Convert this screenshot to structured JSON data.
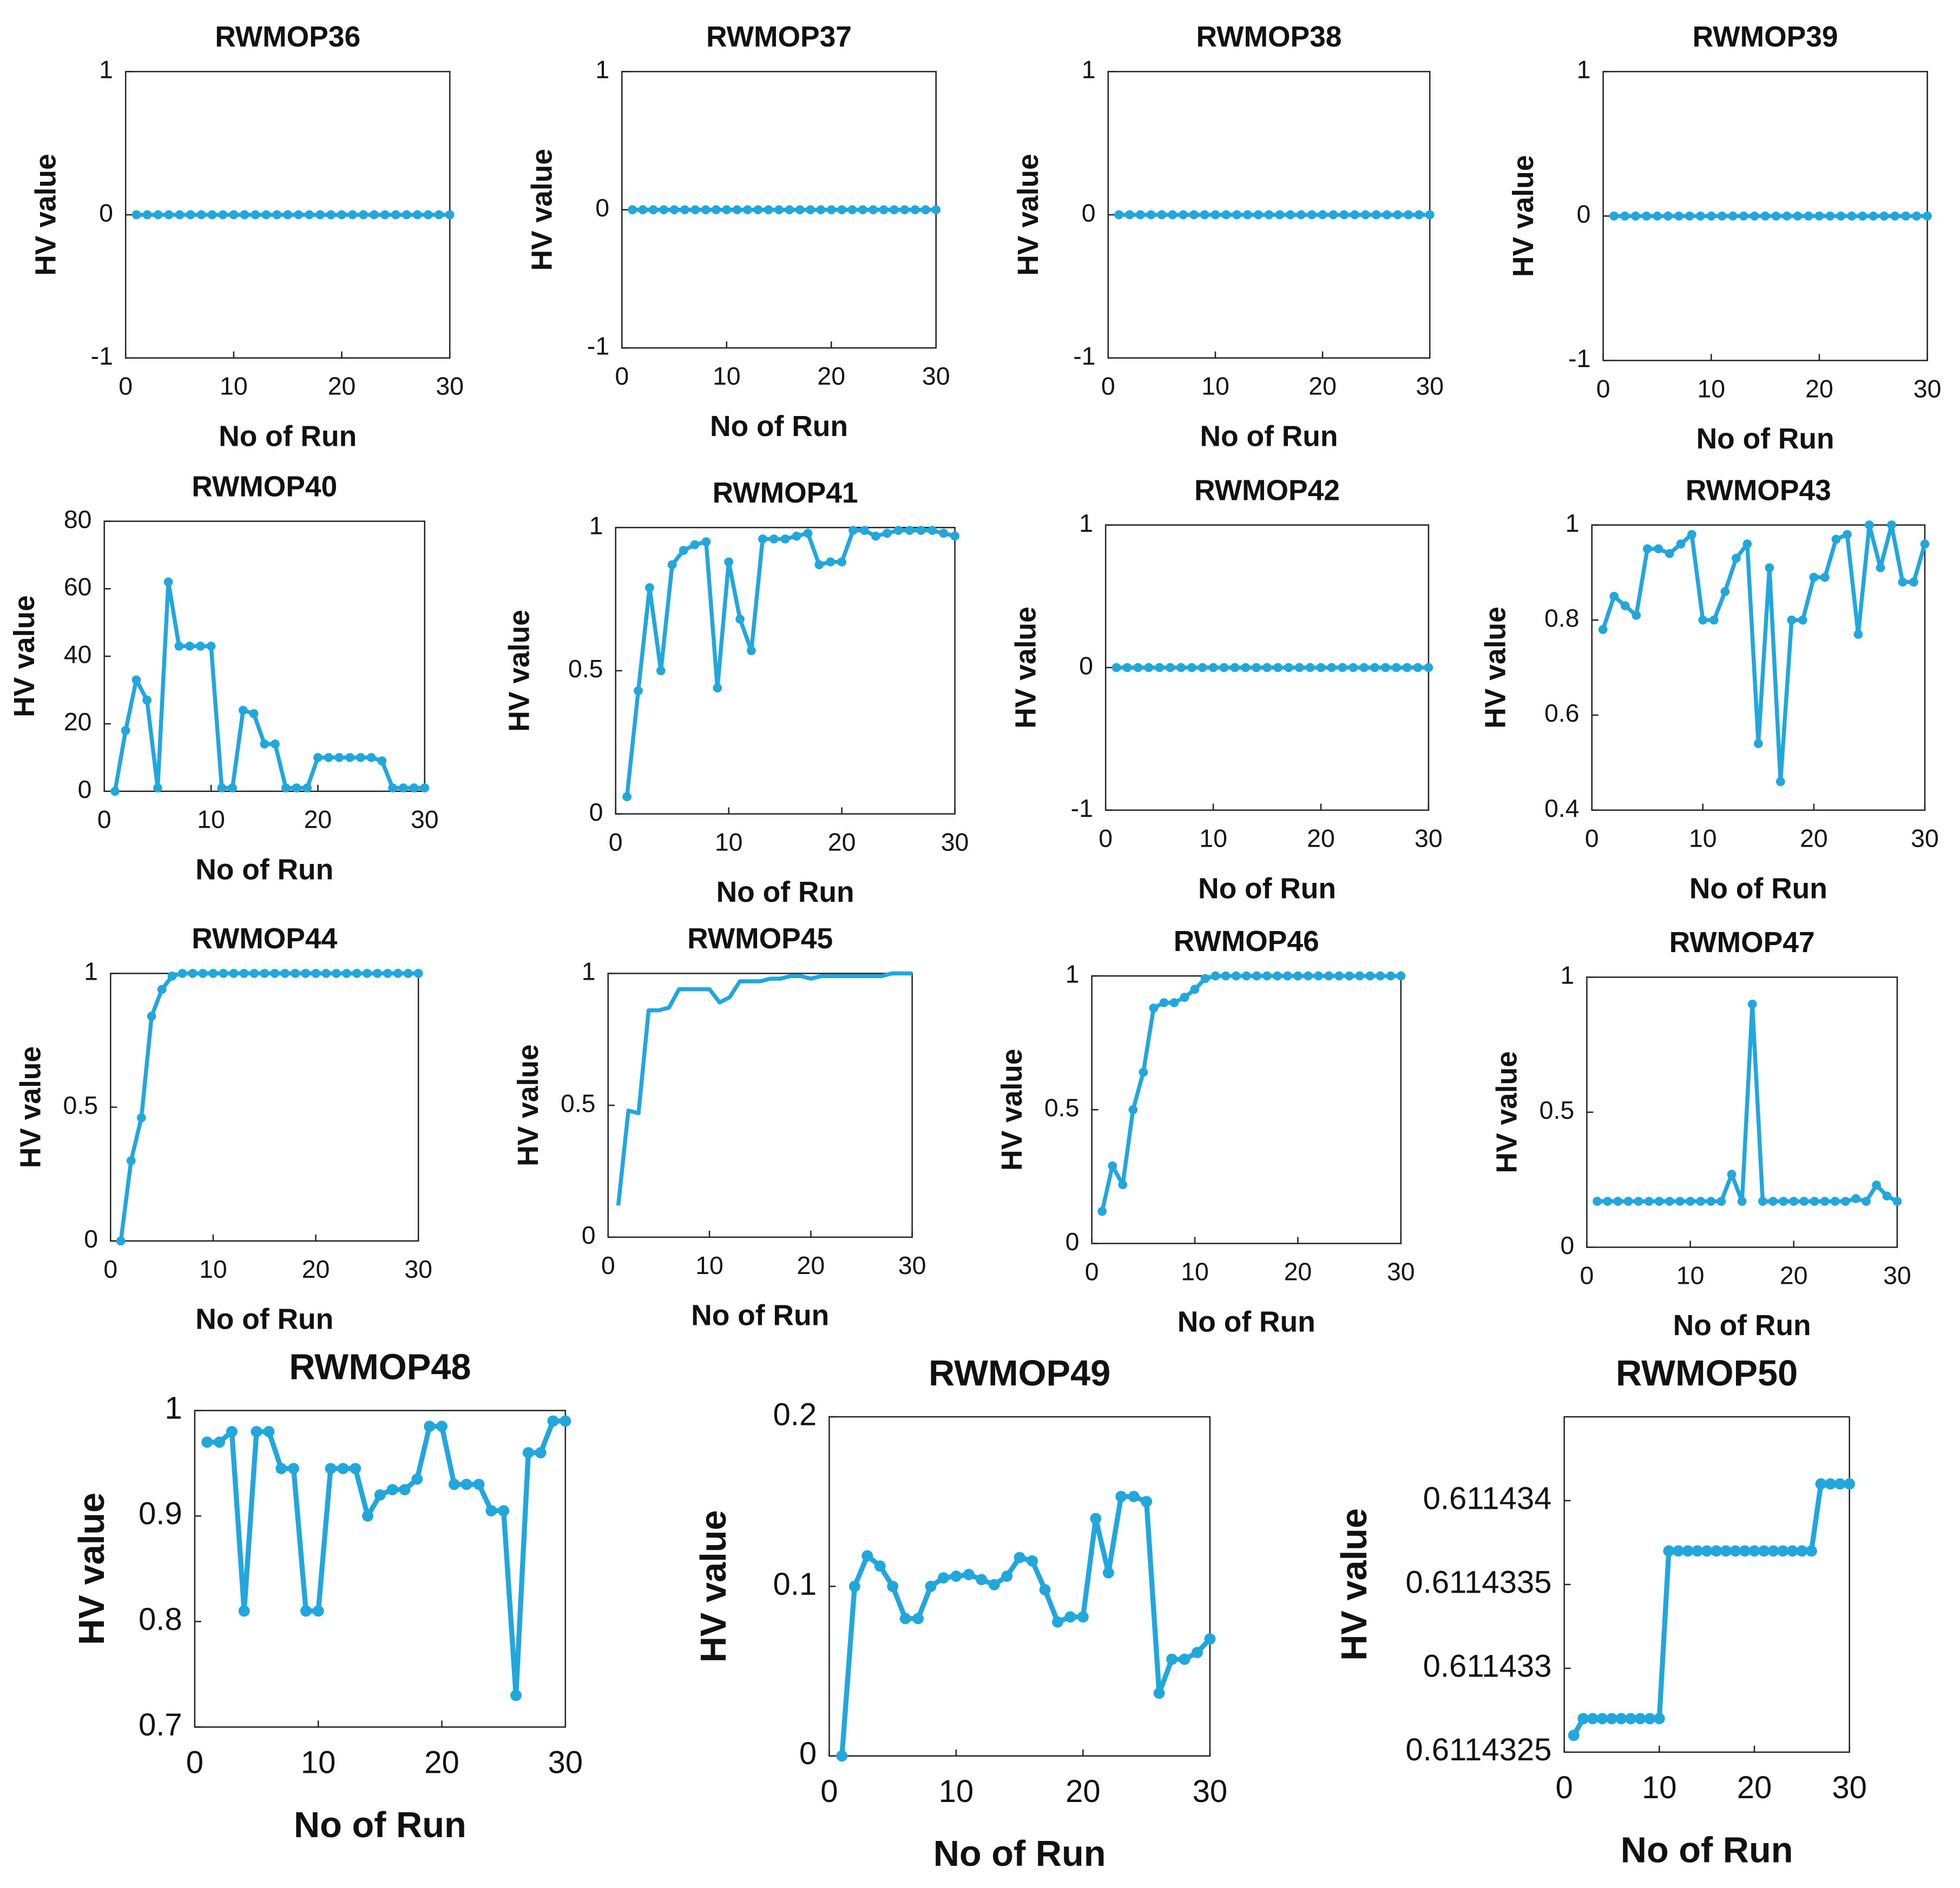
{
  "chart_data": [
    {
      "type": "line",
      "title": "RWMOP36",
      "xlabel": "No of Run",
      "ylabel": "HV value",
      "color": "#22a7dc",
      "markers": true,
      "x": [
        1,
        2,
        3,
        4,
        5,
        6,
        7,
        8,
        9,
        10,
        11,
        12,
        13,
        14,
        15,
        16,
        17,
        18,
        19,
        20,
        21,
        22,
        23,
        24,
        25,
        26,
        27,
        28,
        29,
        30
      ],
      "values": [
        0,
        0,
        0,
        0,
        0,
        0,
        0,
        0,
        0,
        0,
        0,
        0,
        0,
        0,
        0,
        0,
        0,
        0,
        0,
        0,
        0,
        0,
        0,
        0,
        0,
        0,
        0,
        0,
        0,
        0
      ],
      "xlim": [
        0,
        30
      ],
      "xticks": [
        0,
        10,
        20,
        30
      ],
      "ylim": [
        -1,
        1
      ],
      "yticks": [
        -1,
        0,
        1
      ]
    },
    {
      "type": "line",
      "title": "RWMOP37",
      "xlabel": "No of Run",
      "ylabel": "HV value",
      "color": "#22a7dc",
      "markers": true,
      "x": [
        1,
        2,
        3,
        4,
        5,
        6,
        7,
        8,
        9,
        10,
        11,
        12,
        13,
        14,
        15,
        16,
        17,
        18,
        19,
        20,
        21,
        22,
        23,
        24,
        25,
        26,
        27,
        28,
        29,
        30
      ],
      "values": [
        0,
        0,
        0,
        0,
        0,
        0,
        0,
        0,
        0,
        0,
        0,
        0,
        0,
        0,
        0,
        0,
        0,
        0,
        0,
        0,
        0,
        0,
        0,
        0,
        0,
        0,
        0,
        0,
        0,
        0
      ],
      "xlim": [
        0,
        30
      ],
      "xticks": [
        0,
        10,
        20,
        30
      ],
      "ylim": [
        -1,
        1
      ],
      "yticks": [
        -1,
        0,
        1
      ]
    },
    {
      "type": "line",
      "title": "RWMOP38",
      "xlabel": "No of Run",
      "ylabel": "HV value",
      "color": "#22a7dc",
      "markers": true,
      "x": [
        1,
        2,
        3,
        4,
        5,
        6,
        7,
        8,
        9,
        10,
        11,
        12,
        13,
        14,
        15,
        16,
        17,
        18,
        19,
        20,
        21,
        22,
        23,
        24,
        25,
        26,
        27,
        28,
        29,
        30
      ],
      "values": [
        0,
        0,
        0,
        0,
        0,
        0,
        0,
        0,
        0,
        0,
        0,
        0,
        0,
        0,
        0,
        0,
        0,
        0,
        0,
        0,
        0,
        0,
        0,
        0,
        0,
        0,
        0,
        0,
        0,
        0
      ],
      "xlim": [
        0,
        30
      ],
      "xticks": [
        0,
        10,
        20,
        30
      ],
      "ylim": [
        -1,
        1
      ],
      "yticks": [
        -1,
        0,
        1
      ]
    },
    {
      "type": "line",
      "title": "RWMOP39",
      "xlabel": "No of Run",
      "ylabel": "HV value",
      "color": "#22a7dc",
      "markers": true,
      "x": [
        1,
        2,
        3,
        4,
        5,
        6,
        7,
        8,
        9,
        10,
        11,
        12,
        13,
        14,
        15,
        16,
        17,
        18,
        19,
        20,
        21,
        22,
        23,
        24,
        25,
        26,
        27,
        28,
        29,
        30
      ],
      "values": [
        0,
        0,
        0,
        0,
        0,
        0,
        0,
        0,
        0,
        0,
        0,
        0,
        0,
        0,
        0,
        0,
        0,
        0,
        0,
        0,
        0,
        0,
        0,
        0,
        0,
        0,
        0,
        0,
        0,
        0
      ],
      "xlim": [
        0,
        30
      ],
      "xticks": [
        0,
        10,
        20,
        30
      ],
      "ylim": [
        -1,
        1
      ],
      "yticks": [
        -1,
        0,
        1
      ]
    },
    {
      "type": "line",
      "title": "RWMOP40",
      "xlabel": "No of Run",
      "ylabel": "HV value",
      "color": "#22a7dc",
      "markers": true,
      "x": [
        1,
        2,
        3,
        4,
        5,
        6,
        7,
        8,
        9,
        10,
        11,
        12,
        13,
        14,
        15,
        16,
        17,
        18,
        19,
        20,
        21,
        22,
        23,
        24,
        25,
        26,
        27,
        28,
        29,
        30
      ],
      "values": [
        0,
        18,
        33,
        27,
        1,
        62,
        43,
        43,
        43,
        43,
        1,
        1,
        24,
        23,
        14,
        14,
        1,
        1,
        1,
        10,
        10,
        10,
        10,
        10,
        10,
        9,
        1,
        1,
        1,
        1
      ],
      "xlim": [
        0,
        30
      ],
      "xticks": [
        0,
        10,
        20,
        30
      ],
      "ylim": [
        0,
        80
      ],
      "yticks": [
        0,
        20,
        40,
        60,
        80
      ]
    },
    {
      "type": "line",
      "title": "RWMOP41",
      "xlabel": "No of Run",
      "ylabel": "HV value",
      "color": "#22a7dc",
      "markers": true,
      "x": [
        1,
        2,
        3,
        4,
        5,
        6,
        7,
        8,
        9,
        10,
        11,
        12,
        13,
        14,
        15,
        16,
        17,
        18,
        19,
        20,
        21,
        22,
        23,
        24,
        25,
        26,
        27,
        28,
        29,
        30
      ],
      "values": [
        0.06,
        0.43,
        0.79,
        0.5,
        0.87,
        0.92,
        0.94,
        0.95,
        0.44,
        0.88,
        0.68,
        0.57,
        0.96,
        0.96,
        0.96,
        0.97,
        0.98,
        0.87,
        0.88,
        0.88,
        0.99,
        0.99,
        0.97,
        0.98,
        0.99,
        0.99,
        0.99,
        0.99,
        0.98,
        0.97
      ],
      "xlim": [
        0,
        30
      ],
      "xticks": [
        0,
        10,
        20,
        30
      ],
      "ylim": [
        0,
        1
      ],
      "yticks": [
        0,
        0.5,
        1
      ]
    },
    {
      "type": "line",
      "title": "RWMOP42",
      "xlabel": "No of Run",
      "ylabel": "HV value",
      "color": "#22a7dc",
      "markers": true,
      "x": [
        1,
        2,
        3,
        4,
        5,
        6,
        7,
        8,
        9,
        10,
        11,
        12,
        13,
        14,
        15,
        16,
        17,
        18,
        19,
        20,
        21,
        22,
        23,
        24,
        25,
        26,
        27,
        28,
        29,
        30
      ],
      "values": [
        0,
        0,
        0,
        0,
        0,
        0,
        0,
        0,
        0,
        0,
        0,
        0,
        0,
        0,
        0,
        0,
        0,
        0,
        0,
        0,
        0,
        0,
        0,
        0,
        0,
        0,
        0,
        0,
        0,
        0
      ],
      "xlim": [
        0,
        30
      ],
      "xticks": [
        0,
        10,
        20,
        30
      ],
      "ylim": [
        -1,
        1
      ],
      "yticks": [
        -1,
        0,
        1
      ]
    },
    {
      "type": "line",
      "title": "RWMOP43",
      "xlabel": "No of Run",
      "ylabel": "HV value",
      "color": "#22a7dc",
      "markers": true,
      "x": [
        1,
        2,
        3,
        4,
        5,
        6,
        7,
        8,
        9,
        10,
        11,
        12,
        13,
        14,
        15,
        16,
        17,
        18,
        19,
        20,
        21,
        22,
        23,
        24,
        25,
        26,
        27,
        28,
        29,
        30
      ],
      "values": [
        0.78,
        0.85,
        0.83,
        0.81,
        0.95,
        0.95,
        0.94,
        0.96,
        0.98,
        0.8,
        0.8,
        0.86,
        0.93,
        0.96,
        0.54,
        0.91,
        0.46,
        0.8,
        0.8,
        0.89,
        0.89,
        0.97,
        0.98,
        0.77,
        1,
        0.91,
        1,
        0.88,
        0.88,
        0.96
      ],
      "xlim": [
        0,
        30
      ],
      "xticks": [
        0,
        10,
        20,
        30
      ],
      "ylim": [
        0.4,
        1
      ],
      "yticks": [
        0.4,
        0.6,
        0.8,
        1
      ]
    },
    {
      "type": "line",
      "title": "RWMOP44",
      "xlabel": "No of Run",
      "ylabel": "HV value",
      "color": "#22a7dc",
      "markers": true,
      "x": [
        1,
        2,
        3,
        4,
        5,
        6,
        7,
        8,
        9,
        10,
        11,
        12,
        13,
        14,
        15,
        16,
        17,
        18,
        19,
        20,
        21,
        22,
        23,
        24,
        25,
        26,
        27,
        28,
        29,
        30
      ],
      "values": [
        0,
        0.3,
        0.46,
        0.84,
        0.94,
        0.99,
        1,
        1,
        1,
        1,
        1,
        1,
        1,
        1,
        1,
        1,
        1,
        1,
        1,
        1,
        1,
        1,
        1,
        1,
        1,
        1,
        1,
        1,
        1,
        1
      ],
      "xlim": [
        0,
        30
      ],
      "xticks": [
        0,
        10,
        20,
        30
      ],
      "ylim": [
        0,
        1
      ],
      "yticks": [
        0,
        0.5,
        1
      ]
    },
    {
      "type": "line",
      "title": "RWMOP45",
      "xlabel": "No of Run",
      "ylabel": "HV value",
      "color": "#22a7dc",
      "markers": false,
      "x": [
        1,
        2,
        3,
        4,
        5,
        6,
        7,
        8,
        9,
        10,
        11,
        12,
        13,
        14,
        15,
        16,
        17,
        18,
        19,
        20,
        21,
        22,
        23,
        24,
        25,
        26,
        27,
        28,
        29,
        30
      ],
      "values": [
        0.12,
        0.48,
        0.47,
        0.86,
        0.86,
        0.87,
        0.94,
        0.94,
        0.94,
        0.94,
        0.89,
        0.91,
        0.97,
        0.97,
        0.97,
        0.98,
        0.98,
        0.99,
        0.99,
        0.98,
        0.99,
        0.99,
        0.99,
        0.99,
        0.99,
        0.99,
        0.99,
        1,
        1,
        1
      ],
      "xlim": [
        0,
        30
      ],
      "xticks": [
        0,
        10,
        20,
        30
      ],
      "ylim": [
        0,
        1
      ],
      "yticks": [
        0,
        0.5,
        1
      ]
    },
    {
      "type": "line",
      "title": "RWMOP46",
      "xlabel": "No of Run",
      "ylabel": "HV value",
      "color": "#22a7dc",
      "markers": true,
      "x": [
        1,
        2,
        3,
        4,
        5,
        6,
        7,
        8,
        9,
        10,
        11,
        12,
        13,
        14,
        15,
        16,
        17,
        18,
        19,
        20,
        21,
        22,
        23,
        24,
        25,
        26,
        27,
        28,
        29,
        30
      ],
      "values": [
        0.12,
        0.29,
        0.22,
        0.5,
        0.64,
        0.88,
        0.9,
        0.9,
        0.92,
        0.95,
        0.99,
        1,
        1,
        1,
        1,
        1,
        1,
        1,
        1,
        1,
        1,
        1,
        1,
        1,
        1,
        1,
        1,
        1,
        1,
        1
      ],
      "xlim": [
        0,
        30
      ],
      "xticks": [
        0,
        10,
        20,
        30
      ],
      "ylim": [
        0,
        1
      ],
      "yticks": [
        0,
        0.5,
        1
      ]
    },
    {
      "type": "line",
      "title": "RWMOP47",
      "xlabel": "No of Run",
      "ylabel": "HV value",
      "color": "#22a7dc",
      "markers": true,
      "x": [
        1,
        2,
        3,
        4,
        5,
        6,
        7,
        8,
        9,
        10,
        11,
        12,
        13,
        14,
        15,
        16,
        17,
        18,
        19,
        20,
        21,
        22,
        23,
        24,
        25,
        26,
        27,
        28,
        29,
        30
      ],
      "values": [
        0.17,
        0.17,
        0.17,
        0.17,
        0.17,
        0.17,
        0.17,
        0.17,
        0.17,
        0.17,
        0.17,
        0.17,
        0.17,
        0.27,
        0.17,
        0.9,
        0.17,
        0.17,
        0.17,
        0.17,
        0.17,
        0.17,
        0.17,
        0.17,
        0.17,
        0.18,
        0.17,
        0.23,
        0.19,
        0.17
      ],
      "xlim": [
        0,
        30
      ],
      "xticks": [
        0,
        10,
        20,
        30
      ],
      "ylim": [
        0,
        1
      ],
      "yticks": [
        0,
        0.5,
        1
      ]
    },
    {
      "type": "line",
      "title": "RWMOP48",
      "xlabel": "No of Run",
      "ylabel": "HV value",
      "color": "#22a7dc",
      "markers": true,
      "x": [
        1,
        2,
        3,
        4,
        5,
        6,
        7,
        8,
        9,
        10,
        11,
        12,
        13,
        14,
        15,
        16,
        17,
        18,
        19,
        20,
        21,
        22,
        23,
        24,
        25,
        26,
        27,
        28,
        29,
        30
      ],
      "values": [
        0.97,
        0.97,
        0.98,
        0.81,
        0.98,
        0.98,
        0.945,
        0.945,
        0.81,
        0.81,
        0.945,
        0.945,
        0.945,
        0.9,
        0.92,
        0.925,
        0.925,
        0.935,
        0.985,
        0.985,
        0.93,
        0.93,
        0.93,
        0.905,
        0.905,
        0.73,
        0.96,
        0.96,
        0.99,
        0.99
      ],
      "xlim": [
        0,
        30
      ],
      "xticks": [
        0,
        10,
        20,
        30
      ],
      "ylim": [
        0.7,
        1
      ],
      "yticks": [
        0.7,
        0.8,
        0.9,
        1
      ]
    },
    {
      "type": "line",
      "title": "RWMOP49",
      "xlabel": "No of Run",
      "ylabel": "HV value",
      "color": "#22a7dc",
      "markers": true,
      "x": [
        1,
        2,
        3,
        4,
        5,
        6,
        7,
        8,
        9,
        10,
        11,
        12,
        13,
        14,
        15,
        16,
        17,
        18,
        19,
        20,
        21,
        22,
        23,
        24,
        25,
        26,
        27,
        28,
        29,
        30
      ],
      "values": [
        0,
        0.1,
        0.118,
        0.112,
        0.1,
        0.081,
        0.081,
        0.1,
        0.105,
        0.106,
        0.107,
        0.104,
        0.101,
        0.106,
        0.117,
        0.115,
        0.098,
        0.079,
        0.082,
        0.082,
        0.14,
        0.108,
        0.153,
        0.153,
        0.15,
        0.037,
        0.057,
        0.057,
        0.061,
        0.069
      ],
      "xlim": [
        0,
        30
      ],
      "xticks": [
        0,
        10,
        20,
        30
      ],
      "ylim": [
        0,
        0.2
      ],
      "yticks": [
        0,
        0.1,
        0.2
      ]
    },
    {
      "type": "line",
      "title": "RWMOP50",
      "xlabel": "No of Run",
      "ylabel": "HV value",
      "color": "#22a7dc",
      "markers": true,
      "x": [
        1,
        2,
        3,
        4,
        5,
        6,
        7,
        8,
        9,
        10,
        11,
        12,
        13,
        14,
        15,
        16,
        17,
        18,
        19,
        20,
        21,
        22,
        23,
        24,
        25,
        26,
        27,
        28,
        29,
        30
      ],
      "values": [
        0.6114326,
        0.6114327,
        0.6114327,
        0.6114327,
        0.6114327,
        0.6114327,
        0.6114327,
        0.6114327,
        0.6114327,
        0.6114327,
        0.6114337,
        0.6114337,
        0.6114337,
        0.6114337,
        0.6114337,
        0.6114337,
        0.6114337,
        0.6114337,
        0.6114337,
        0.6114337,
        0.6114337,
        0.6114337,
        0.6114337,
        0.6114337,
        0.6114337,
        0.6114337,
        0.6114341,
        0.6114341,
        0.6114341,
        0.6114341
      ],
      "xlim": [
        0,
        30
      ],
      "xticks": [
        0,
        10,
        20,
        30
      ],
      "ylim": [
        0.6114325,
        0.6114345
      ],
      "yticks": [
        0.6114325,
        0.611433,
        0.6114335,
        0.611434
      ]
    }
  ]
}
